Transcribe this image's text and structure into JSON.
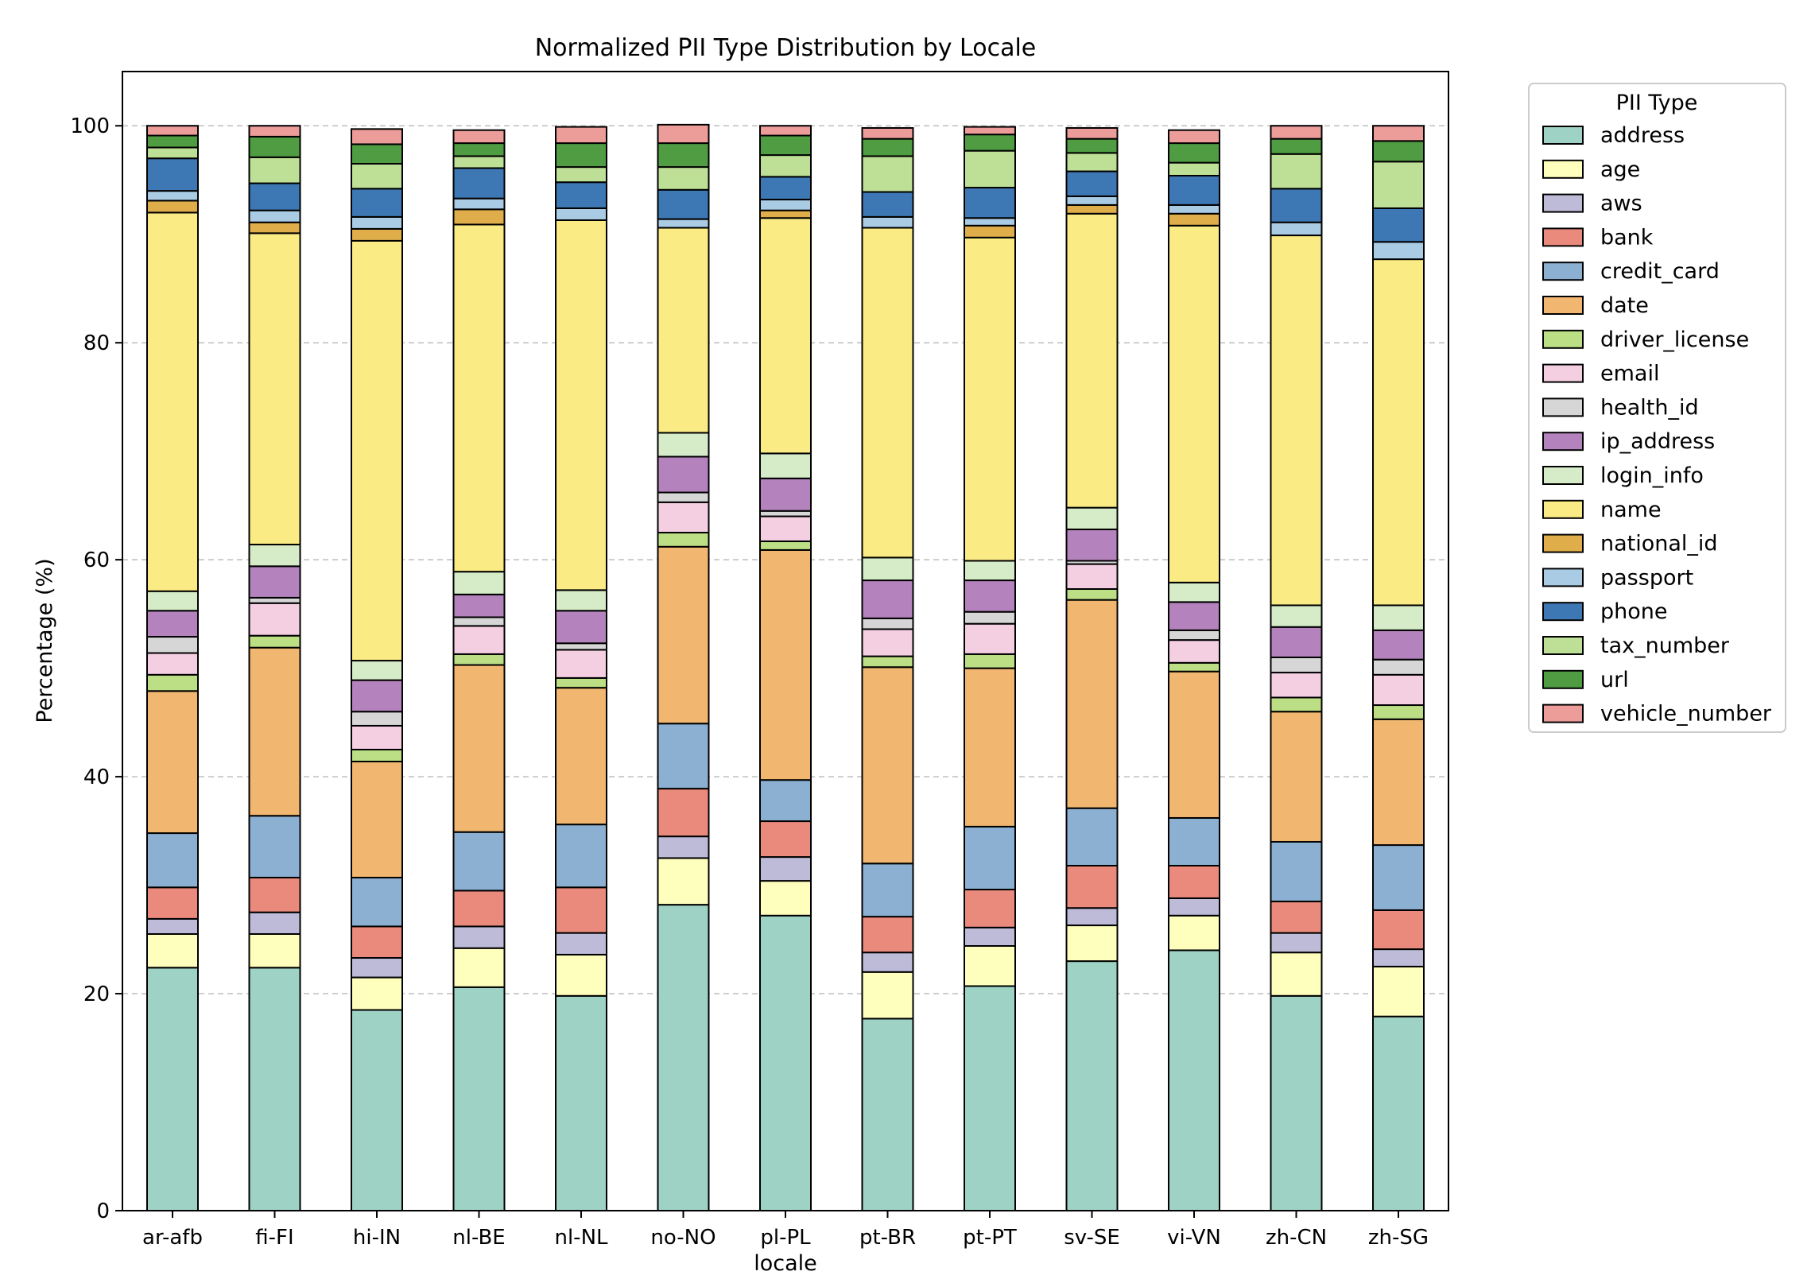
{
  "chart_data": {
    "type": "bar",
    "stacked": true,
    "title": "Normalized PII Type Distribution by Locale",
    "xlabel": "locale",
    "ylabel": "Percentage (%)",
    "ylim": [
      0,
      105
    ],
    "yticks": [
      0,
      20,
      40,
      60,
      80,
      100
    ],
    "grid": "y-dashed",
    "legend": {
      "title": "PII Type",
      "placement": "outside-right-top"
    },
    "categories": [
      "ar-afb",
      "fi-FI",
      "hi-IN",
      "nl-BE",
      "nl-NL",
      "no-NO",
      "pl-PL",
      "pt-BR",
      "pt-PT",
      "sv-SE",
      "vi-VN",
      "zh-CN",
      "zh-SG"
    ],
    "series": [
      {
        "name": "address",
        "color": "#9dd2c5",
        "values": [
          22.4,
          22.4,
          18.5,
          20.6,
          19.8,
          28.2,
          27.2,
          17.7,
          20.7,
          23.0,
          24.0,
          19.8,
          17.9
        ]
      },
      {
        "name": "age",
        "color": "#feffbd",
        "values": [
          3.1,
          3.1,
          3.0,
          3.6,
          3.8,
          4.3,
          3.2,
          4.3,
          3.7,
          3.3,
          3.2,
          4.0,
          4.6
        ]
      },
      {
        "name": "aws",
        "color": "#bebbd9",
        "values": [
          1.4,
          2.0,
          1.8,
          2.0,
          2.0,
          2.0,
          2.2,
          1.8,
          1.7,
          1.6,
          1.6,
          1.8,
          1.6
        ]
      },
      {
        "name": "bank",
        "color": "#ea8a7c",
        "values": [
          2.9,
          3.2,
          2.9,
          3.3,
          4.2,
          4.4,
          3.3,
          3.3,
          3.5,
          3.9,
          3.0,
          2.9,
          3.6
        ]
      },
      {
        "name": "credit_card",
        "color": "#8cb0d2",
        "values": [
          5.0,
          5.7,
          4.5,
          5.4,
          5.8,
          6.0,
          3.8,
          4.9,
          5.8,
          5.3,
          4.4,
          5.5,
          6.0
        ]
      },
      {
        "name": "date",
        "color": "#f1b770",
        "values": [
          13.1,
          15.5,
          10.7,
          15.4,
          12.6,
          16.3,
          21.2,
          18.1,
          14.6,
          19.2,
          13.5,
          12.0,
          11.6
        ]
      },
      {
        "name": "driver_license",
        "color": "#bcde85",
        "values": [
          1.5,
          1.1,
          1.1,
          1.0,
          0.9,
          1.3,
          0.8,
          1.0,
          1.3,
          1.0,
          0.8,
          1.3,
          1.3
        ]
      },
      {
        "name": "email",
        "color": "#f4cee1",
        "values": [
          2.0,
          3.0,
          2.2,
          2.6,
          2.6,
          2.8,
          2.3,
          2.5,
          2.8,
          2.3,
          2.1,
          2.3,
          2.8
        ]
      },
      {
        "name": "health_id",
        "color": "#d6d6d6",
        "values": [
          1.5,
          0.5,
          1.3,
          0.8,
          0.6,
          0.9,
          0.5,
          1.0,
          1.1,
          0.3,
          0.9,
          1.4,
          1.4
        ]
      },
      {
        "name": "ip_address",
        "color": "#b482bc",
        "values": [
          2.4,
          2.9,
          2.9,
          2.1,
          3.0,
          3.3,
          3.0,
          3.5,
          2.9,
          2.9,
          2.6,
          2.8,
          2.7
        ]
      },
      {
        "name": "login_info",
        "color": "#d6ecc8",
        "values": [
          1.8,
          2.0,
          1.8,
          2.1,
          1.9,
          2.2,
          2.3,
          2.1,
          1.8,
          2.0,
          1.8,
          2.0,
          2.3
        ]
      },
      {
        "name": "name",
        "color": "#fbeb85",
        "values": [
          34.9,
          28.7,
          38.7,
          32.0,
          34.1,
          18.9,
          21.7,
          30.4,
          29.8,
          27.1,
          32.9,
          34.1,
          31.9
        ]
      },
      {
        "name": "national_id",
        "color": "#dfae4a",
        "values": [
          1.1,
          1.0,
          1.1,
          1.4,
          0.0,
          0.0,
          0.7,
          0.0,
          1.1,
          0.8,
          1.1,
          0.0,
          0.0
        ]
      },
      {
        "name": "passport",
        "color": "#a9cbe3",
        "values": [
          0.9,
          1.1,
          1.1,
          1.0,
          1.1,
          0.8,
          1.0,
          1.0,
          0.7,
          0.8,
          0.8,
          1.2,
          1.6
        ]
      },
      {
        "name": "phone",
        "color": "#3e78b4",
        "values": [
          3.0,
          2.5,
          2.6,
          2.8,
          2.4,
          2.7,
          2.1,
          2.3,
          2.8,
          2.3,
          2.7,
          3.1,
          3.1
        ]
      },
      {
        "name": "tax_number",
        "color": "#bddf96",
        "values": [
          1.0,
          2.4,
          2.3,
          1.1,
          1.4,
          2.1,
          2.0,
          3.3,
          3.4,
          1.7,
          1.2,
          3.2,
          4.3
        ]
      },
      {
        "name": "url",
        "color": "#4f9c43",
        "values": [
          1.1,
          1.9,
          1.8,
          1.2,
          2.2,
          2.2,
          1.8,
          1.6,
          1.5,
          1.3,
          1.8,
          1.4,
          1.9
        ]
      },
      {
        "name": "vehicle_number",
        "color": "#ec9d9a",
        "values": [
          0.9,
          1.0,
          1.4,
          1.2,
          1.5,
          1.7,
          0.9,
          1.0,
          0.7,
          1.0,
          1.2,
          1.2,
          1.4
        ]
      }
    ]
  }
}
